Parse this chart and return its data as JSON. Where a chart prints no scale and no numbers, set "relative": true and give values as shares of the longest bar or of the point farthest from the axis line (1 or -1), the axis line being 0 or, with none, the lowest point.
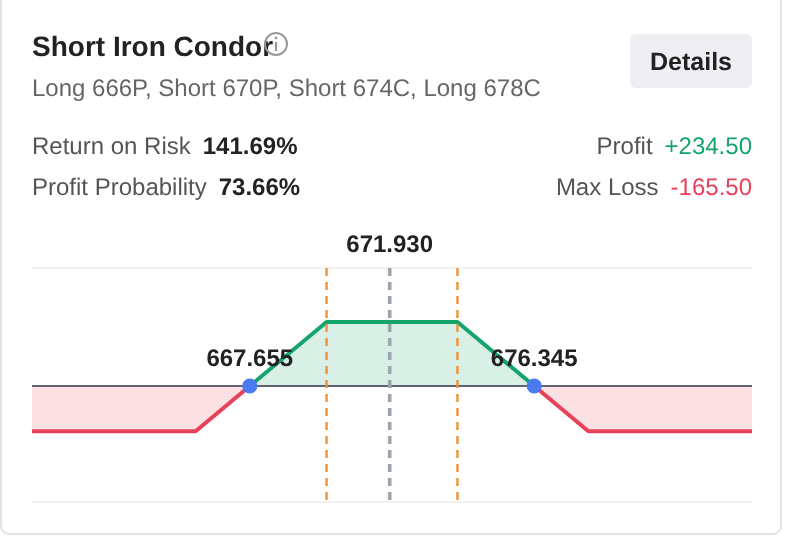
{
  "chart_data": {
    "type": "area",
    "title": "Short Iron Condor",
    "subtitle": "Long 666P, Short 670P, Short 674C, Long 678C",
    "relative": true,
    "xlim": [
      661,
      683
    ],
    "xticks": [
      667.655,
      676.345
    ],
    "tick_labels": "x",
    "series": [
      {
        "color": "#e8415a",
        "x": [
          661,
          666,
          667.655,
          672,
          676.345,
          678,
          683
        ],
        "values": [
          -0.706,
          -0.706,
          0,
          null,
          0,
          -0.706,
          -0.706
        ]
      },
      {
        "color": "#14a46c",
        "x": [
          667.655,
          670,
          674,
          676.345
        ],
        "values": [
          0,
          1,
          1,
          0
        ]
      },
      {
        "type": "scatter",
        "color": "#4a7af0",
        "marker": "circle",
        "x": [
          667.655,
          676.345
        ],
        "values": [
          0,
          0
        ]
      }
    ],
    "ref_lines": [
      {
        "axis": "x",
        "value": 670,
        "color": "#f0913c",
        "line_style": "dashed"
      },
      {
        "axis": "x",
        "value": 671.93,
        "label": "671.930",
        "color": "#9ba3ae",
        "line_style": "dashed"
      },
      {
        "axis": "x",
        "value": 674,
        "color": "#f0913c",
        "line_style": "dashed"
      }
    ],
    "annotations": [
      "Return on Risk",
      "141.69%",
      "Profit Probability",
      "73.66%",
      "Profit",
      "+234.50",
      "Max Loss",
      "-165.50",
      "Details"
    ]
  }
}
